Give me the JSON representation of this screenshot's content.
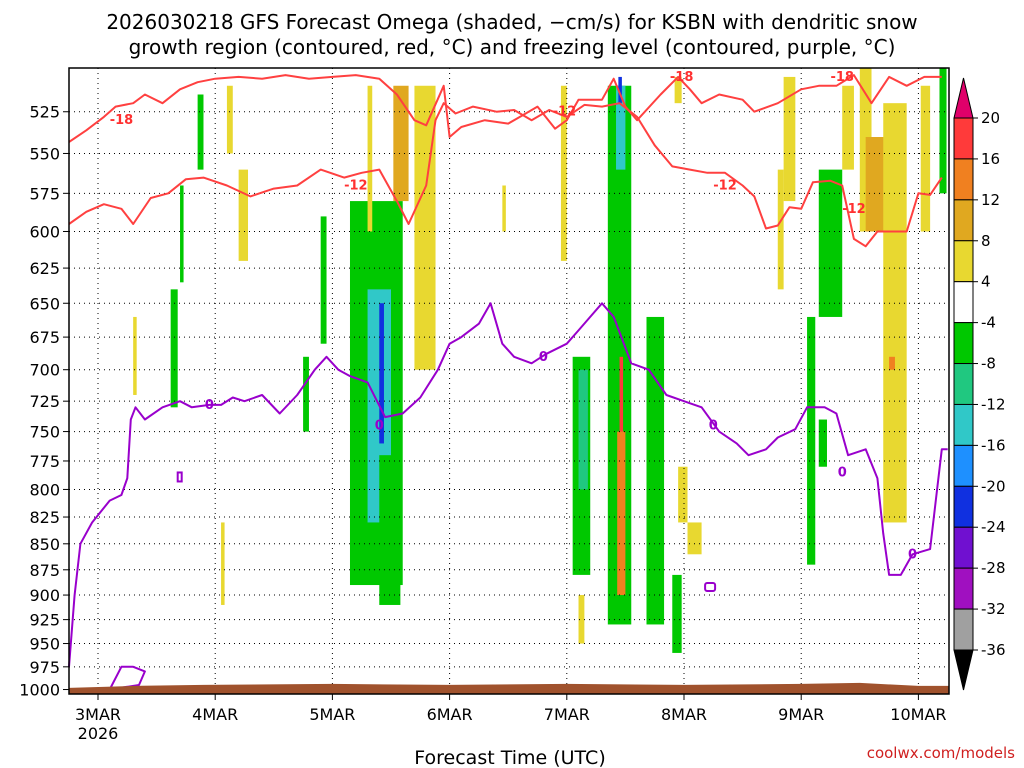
{
  "title_line1": "2026030218 GFS Forecast Omega (shaded, −cm/s) for KSBN with dendritic snow",
  "title_line2": "growth region (contoured, red, °C) and freezing level (contoured, purple, °C)",
  "credit": "coolwx.com/models",
  "chart_data": {
    "type": "heatmap",
    "title": "2026030218 GFS Forecast Omega (shaded, −cm/s) for KSBN with dendritic snow growth region (contoured, red, °C) and freezing level (contoured, purple, °C)",
    "xlabel": "Forecast Time (UTC)",
    "ylabel": "",
    "x_range": [
      "2026-03-02T18",
      "2026-03-10T06"
    ],
    "x_ticks": [
      {
        "label": "3MAR",
        "sub": "2026",
        "day": 3
      },
      {
        "label": "4MAR",
        "sub": "",
        "day": 4
      },
      {
        "label": "5MAR",
        "sub": "",
        "day": 5
      },
      {
        "label": "6MAR",
        "sub": "",
        "day": 6
      },
      {
        "label": "7MAR",
        "sub": "",
        "day": 7
      },
      {
        "label": "8MAR",
        "sub": "",
        "day": 8
      },
      {
        "label": "9MAR",
        "sub": "",
        "day": 9
      },
      {
        "label": "10MAR",
        "sub": "",
        "day": 10
      }
    ],
    "y_axis": {
      "unit": "hPa",
      "scale": "log",
      "range": [
        1005,
        500
      ],
      "inverted": true
    },
    "y_ticks": [
      525,
      550,
      575,
      600,
      625,
      650,
      675,
      700,
      725,
      750,
      775,
      800,
      825,
      850,
      875,
      900,
      925,
      950,
      975,
      1000
    ],
    "grid": "dotted",
    "colorbar": {
      "levels": [
        20,
        16,
        12,
        8,
        4,
        -4,
        -8,
        -12,
        -16,
        -20,
        -24,
        -28,
        -32,
        -36
      ],
      "colors": [
        "#e0006a",
        "#ff3a3a",
        "#f08020",
        "#e0a820",
        "#e8d830",
        "#ffffff",
        "#00c800",
        "#20c880",
        "#30c8c8",
        "#1e90ff",
        "#1030e0",
        "#7010d0",
        "#a010c0",
        "#a0a0a0",
        "#000000"
      ]
    },
    "omega_regions": [
      {
        "color": "#00c800",
        "x0": 3.7,
        "x1": 3.73,
        "p0": 570,
        "p1": 635
      },
      {
        "color": "#00c800",
        "x0": 3.62,
        "x1": 3.68,
        "p0": 640,
        "p1": 730
      },
      {
        "color": "#00c800",
        "x0": 3.85,
        "x1": 3.9,
        "p0": 515,
        "p1": 560
      },
      {
        "color": "#e8d830",
        "x0": 3.3,
        "x1": 3.33,
        "p0": 660,
        "p1": 720
      },
      {
        "color": "#e8d830",
        "x0": 4.1,
        "x1": 4.15,
        "p0": 510,
        "p1": 550
      },
      {
        "color": "#e8d830",
        "x0": 4.2,
        "x1": 4.28,
        "p0": 560,
        "p1": 620
      },
      {
        "color": "#e8d830",
        "x0": 4.05,
        "x1": 4.08,
        "p0": 830,
        "p1": 910
      },
      {
        "color": "#00c800",
        "x0": 4.75,
        "x1": 4.8,
        "p0": 690,
        "p1": 750
      },
      {
        "color": "#00c800",
        "x0": 4.9,
        "x1": 4.95,
        "p0": 590,
        "p1": 680
      },
      {
        "color": "#00c800",
        "x0": 5.15,
        "x1": 5.6,
        "p0": 580,
        "p1": 890
      },
      {
        "color": "#30c8c8",
        "x0": 5.3,
        "x1": 5.5,
        "p0": 640,
        "p1": 830
      },
      {
        "color": "#1030e0",
        "x0": 5.4,
        "x1": 5.44,
        "p0": 650,
        "p1": 760
      },
      {
        "color": "#00c800",
        "x0": 5.4,
        "x1": 5.58,
        "p0": 770,
        "p1": 910
      },
      {
        "color": "#e8d830",
        "x0": 5.3,
        "x1": 5.34,
        "p0": 510,
        "p1": 600
      },
      {
        "color": "#e0a820",
        "x0": 5.52,
        "x1": 5.65,
        "p0": 510,
        "p1": 580
      },
      {
        "color": "#e8d830",
        "x0": 5.7,
        "x1": 5.88,
        "p0": 510,
        "p1": 700
      },
      {
        "color": "#e8d830",
        "x0": 6.45,
        "x1": 6.48,
        "p0": 570,
        "p1": 600
      },
      {
        "color": "#e8d830",
        "x0": 6.95,
        "x1": 7.0,
        "p0": 510,
        "p1": 620
      },
      {
        "color": "#00c800",
        "x0": 7.05,
        "x1": 7.2,
        "p0": 690,
        "p1": 880
      },
      {
        "color": "#20c880",
        "x0": 7.1,
        "x1": 7.18,
        "p0": 700,
        "p1": 800
      },
      {
        "color": "#00c800",
        "x0": 7.35,
        "x1": 7.55,
        "p0": 510,
        "p1": 930
      },
      {
        "color": "#30c8c8",
        "x0": 7.42,
        "x1": 7.5,
        "p0": 510,
        "p1": 560
      },
      {
        "color": "#1030e0",
        "x0": 7.44,
        "x1": 7.47,
        "p0": 505,
        "p1": 520
      },
      {
        "color": "#ff3a3a",
        "x0": 7.45,
        "x1": 7.48,
        "p0": 690,
        "p1": 860
      },
      {
        "color": "#f08020",
        "x0": 7.43,
        "x1": 7.5,
        "p0": 750,
        "p1": 900
      },
      {
        "color": "#e8d830",
        "x0": 7.1,
        "x1": 7.15,
        "p0": 900,
        "p1": 950
      },
      {
        "color": "#00c800",
        "x0": 7.68,
        "x1": 7.83,
        "p0": 660,
        "p1": 930
      },
      {
        "color": "#00c800",
        "x0": 7.9,
        "x1": 7.98,
        "p0": 880,
        "p1": 960
      },
      {
        "color": "#e8d830",
        "x0": 7.92,
        "x1": 7.98,
        "p0": 505,
        "p1": 520
      },
      {
        "color": "#e8d830",
        "x0": 7.95,
        "x1": 8.03,
        "p0": 780,
        "p1": 830
      },
      {
        "color": "#e8d830",
        "x0": 8.03,
        "x1": 8.15,
        "p0": 830,
        "p1": 860
      },
      {
        "color": "#e8d830",
        "x0": 8.85,
        "x1": 8.95,
        "p0": 505,
        "p1": 580
      },
      {
        "color": "#e8d830",
        "x0": 8.8,
        "x1": 8.85,
        "p0": 560,
        "p1": 640
      },
      {
        "color": "#00c800",
        "x0": 9.05,
        "x1": 9.12,
        "p0": 660,
        "p1": 870
      },
      {
        "color": "#00c800",
        "x0": 9.15,
        "x1": 9.35,
        "p0": 560,
        "p1": 660
      },
      {
        "color": "#00c800",
        "x0": 9.15,
        "x1": 9.22,
        "p0": 740,
        "p1": 780
      },
      {
        "color": "#e8d830",
        "x0": 9.35,
        "x1": 9.45,
        "p0": 510,
        "p1": 560
      },
      {
        "color": "#e8d830",
        "x0": 9.5,
        "x1": 9.6,
        "p0": 500,
        "p1": 600
      },
      {
        "color": "#e0a820",
        "x0": 9.55,
        "x1": 9.75,
        "p0": 540,
        "p1": 600
      },
      {
        "color": "#e8d830",
        "x0": 9.7,
        "x1": 9.9,
        "p0": 520,
        "p1": 830
      },
      {
        "color": "#f08020",
        "x0": 9.75,
        "x1": 9.8,
        "p0": 690,
        "p1": 700
      },
      {
        "color": "#00c800",
        "x0": 10.18,
        "x1": 10.24,
        "p0": 500,
        "p1": 575
      },
      {
        "color": "#e8d830",
        "x0": 10.02,
        "x1": 10.1,
        "p0": 510,
        "p1": 600
      }
    ],
    "isotherm_minus18": {
      "name": "",
      "labels": [
        {
          "text": "-18",
          "x": 3.2,
          "p": 530
        },
        {
          "text": "-18",
          "x": 7.98,
          "p": 505
        },
        {
          "text": "-18",
          "x": 9.35,
          "p": 505
        }
      ],
      "points": [
        [
          2.75,
          543
        ],
        [
          2.9,
          536
        ],
        [
          3.05,
          528
        ],
        [
          3.15,
          522
        ],
        [
          3.3,
          520
        ],
        [
          3.4,
          515
        ],
        [
          3.55,
          520
        ],
        [
          3.7,
          512
        ],
        [
          3.85,
          508
        ],
        [
          4.0,
          506
        ],
        [
          4.2,
          505
        ],
        [
          4.4,
          506
        ],
        [
          4.6,
          504
        ],
        [
          4.8,
          506
        ],
        [
          5.0,
          505
        ],
        [
          5.2,
          504
        ],
        [
          5.4,
          506
        ],
        [
          5.55,
          515
        ],
        [
          5.7,
          530
        ],
        [
          5.8,
          533
        ],
        [
          5.95,
          510
        ],
        [
          6.0,
          540
        ],
        [
          6.1,
          534
        ],
        [
          6.3,
          530
        ],
        [
          6.5,
          532
        ],
        [
          6.6,
          528
        ],
        [
          6.75,
          522
        ],
        [
          6.9,
          535
        ],
        [
          7.0,
          530
        ],
        [
          7.1,
          518
        ],
        [
          7.3,
          518
        ],
        [
          7.4,
          506
        ],
        [
          7.5,
          522
        ],
        [
          7.6,
          530
        ],
        [
          7.8,
          515
        ],
        [
          7.95,
          505
        ],
        [
          8.05,
          512
        ],
        [
          8.15,
          520
        ],
        [
          8.3,
          515
        ],
        [
          8.5,
          518
        ],
        [
          8.6,
          525
        ],
        [
          8.8,
          520
        ],
        [
          9.0,
          512
        ],
        [
          9.15,
          510
        ],
        [
          9.3,
          510
        ],
        [
          9.45,
          504
        ],
        [
          9.6,
          520
        ],
        [
          9.75,
          505
        ],
        [
          9.9,
          510
        ],
        [
          10.05,
          505
        ],
        [
          10.2,
          505
        ]
      ]
    },
    "isotherm_minus12": {
      "name": "",
      "labels": [
        {
          "text": "-12",
          "x": 5.2,
          "p": 570
        },
        {
          "text": "-12",
          "x": 6.98,
          "p": 525
        },
        {
          "text": "-12",
          "x": 8.35,
          "p": 570
        },
        {
          "text": "-12",
          "x": 9.45,
          "p": 585
        }
      ],
      "points": [
        [
          2.75,
          595
        ],
        [
          2.9,
          587
        ],
        [
          3.05,
          582
        ],
        [
          3.2,
          585
        ],
        [
          3.3,
          595
        ],
        [
          3.45,
          578
        ],
        [
          3.6,
          575
        ],
        [
          3.75,
          566
        ],
        [
          3.9,
          565
        ],
        [
          4.1,
          570
        ],
        [
          4.3,
          577
        ],
        [
          4.5,
          572
        ],
        [
          4.7,
          570
        ],
        [
          4.9,
          560
        ],
        [
          5.1,
          565
        ],
        [
          5.25,
          562
        ],
        [
          5.4,
          560
        ],
        [
          5.55,
          580
        ],
        [
          5.65,
          595
        ],
        [
          5.8,
          570
        ],
        [
          5.88,
          530
        ],
        [
          5.95,
          520
        ],
        [
          6.05,
          526
        ],
        [
          6.2,
          522
        ],
        [
          6.4,
          525
        ],
        [
          6.55,
          524
        ],
        [
          6.7,
          530
        ],
        [
          6.85,
          524
        ],
        [
          7.0,
          528
        ],
        [
          7.15,
          521
        ],
        [
          7.3,
          522
        ],
        [
          7.45,
          520
        ],
        [
          7.6,
          528
        ],
        [
          7.75,
          545
        ],
        [
          7.9,
          558
        ],
        [
          8.05,
          560
        ],
        [
          8.2,
          562
        ],
        [
          8.35,
          562
        ],
        [
          8.5,
          570
        ],
        [
          8.6,
          577
        ],
        [
          8.7,
          598
        ],
        [
          8.8,
          596
        ],
        [
          8.9,
          584
        ],
        [
          9.0,
          585
        ],
        [
          9.1,
          568
        ],
        [
          9.25,
          567
        ],
        [
          9.35,
          570
        ],
        [
          9.45,
          605
        ],
        [
          9.55,
          610
        ],
        [
          9.65,
          600
        ],
        [
          9.8,
          600
        ],
        [
          9.9,
          600
        ],
        [
          10.0,
          575
        ],
        [
          10.1,
          576
        ],
        [
          10.2,
          565
        ]
      ]
    },
    "freezing_level_0": {
      "name": "",
      "labels": [
        {
          "text": "0",
          "x": 3.95,
          "p": 728
        },
        {
          "text": "0",
          "x": 5.4,
          "p": 745
        },
        {
          "text": "0",
          "x": 6.8,
          "p": 690
        },
        {
          "text": "0",
          "x": 8.25,
          "p": 745
        },
        {
          "text": "0",
          "x": 9.35,
          "p": 785
        },
        {
          "text": "0",
          "x": 9.95,
          "p": 860
        }
      ],
      "points": [
        [
          2.75,
          975
        ],
        [
          2.8,
          900
        ],
        [
          2.85,
          850
        ],
        [
          2.95,
          830
        ],
        [
          3.1,
          810
        ],
        [
          3.2,
          805
        ],
        [
          3.25,
          790
        ],
        [
          3.28,
          740
        ],
        [
          3.32,
          730
        ],
        [
          3.4,
          740
        ],
        [
          3.55,
          730
        ],
        [
          3.7,
          725
        ],
        [
          3.8,
          730
        ],
        [
          3.95,
          728
        ],
        [
          4.05,
          728
        ],
        [
          4.15,
          722
        ],
        [
          4.25,
          725
        ],
        [
          4.4,
          720
        ],
        [
          4.55,
          735
        ],
        [
          4.7,
          720
        ],
        [
          4.85,
          700
        ],
        [
          4.95,
          690
        ],
        [
          5.05,
          700
        ],
        [
          5.15,
          705
        ],
        [
          5.3,
          710
        ],
        [
          5.45,
          738
        ],
        [
          5.6,
          735
        ],
        [
          5.75,
          722
        ],
        [
          5.9,
          700
        ],
        [
          6.0,
          680
        ],
        [
          6.1,
          675
        ],
        [
          6.25,
          665
        ],
        [
          6.35,
          650
        ],
        [
          6.45,
          680
        ],
        [
          6.55,
          690
        ],
        [
          6.7,
          695
        ],
        [
          6.82,
          688
        ],
        [
          7.0,
          680
        ],
        [
          7.1,
          670
        ],
        [
          7.2,
          660
        ],
        [
          7.3,
          650
        ],
        [
          7.4,
          660
        ],
        [
          7.55,
          695
        ],
        [
          7.7,
          700
        ],
        [
          7.85,
          720
        ],
        [
          8.0,
          725
        ],
        [
          8.15,
          730
        ],
        [
          8.3,
          750
        ],
        [
          8.45,
          760
        ],
        [
          8.55,
          770
        ],
        [
          8.7,
          765
        ],
        [
          8.8,
          755
        ],
        [
          8.95,
          748
        ],
        [
          9.05,
          730
        ],
        [
          9.2,
          730
        ],
        [
          9.3,
          735
        ],
        [
          9.4,
          770
        ],
        [
          9.55,
          765
        ],
        [
          9.65,
          790
        ],
        [
          9.7,
          840
        ],
        [
          9.75,
          880
        ],
        [
          9.85,
          880
        ],
        [
          9.95,
          860
        ],
        [
          10.1,
          855
        ],
        [
          10.2,
          765
        ],
        [
          10.25,
          765
        ]
      ]
    },
    "freezing_level_low": {
      "name": "",
      "points": [
        [
          3.1,
          1000
        ],
        [
          3.2,
          975
        ],
        [
          3.3,
          975
        ],
        [
          3.4,
          980
        ],
        [
          3.35,
          995
        ],
        [
          3.1,
          1000
        ]
      ]
    },
    "ground_top_hPa": 996
  }
}
